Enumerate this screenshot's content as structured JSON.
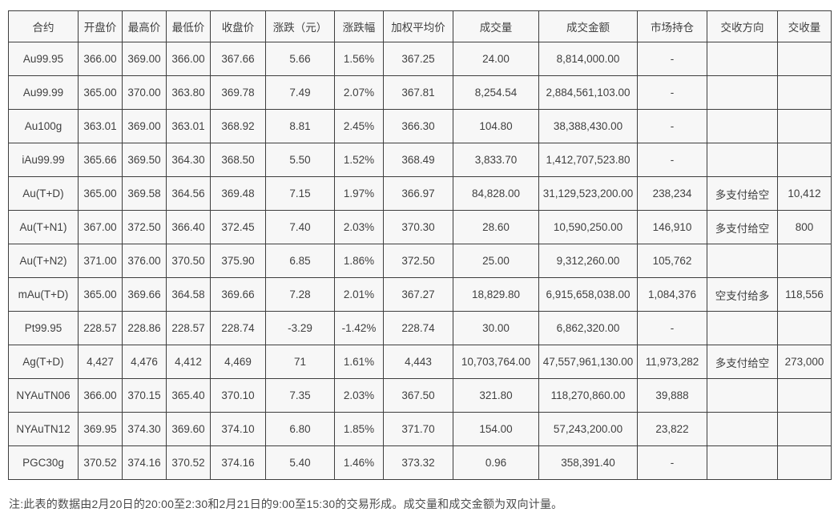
{
  "table": {
    "headers": [
      "合约",
      "开盘价",
      "最高价",
      "最低价",
      "收盘价",
      "涨跌（元）",
      "涨跌幅",
      "加权平均价",
      "成交量",
      "成交金额",
      "市场持仓",
      "交收方向",
      "交收量"
    ],
    "rows": [
      [
        "Au99.95",
        "366.00",
        "369.00",
        "366.00",
        "367.66",
        "5.66",
        "1.56%",
        "367.25",
        "24.00",
        "8,814,000.00",
        "-",
        "",
        ""
      ],
      [
        "Au99.99",
        "365.00",
        "370.00",
        "363.80",
        "369.78",
        "7.49",
        "2.07%",
        "367.81",
        "8,254.54",
        "2,884,561,103.00",
        "-",
        "",
        ""
      ],
      [
        "Au100g",
        "363.01",
        "369.00",
        "363.01",
        "368.92",
        "8.81",
        "2.45%",
        "366.30",
        "104.80",
        "38,388,430.00",
        "-",
        "",
        ""
      ],
      [
        "iAu99.99",
        "365.66",
        "369.50",
        "364.30",
        "368.50",
        "5.50",
        "1.52%",
        "368.49",
        "3,833.70",
        "1,412,707,523.80",
        "-",
        "",
        ""
      ],
      [
        "Au(T+D)",
        "365.00",
        "369.58",
        "364.56",
        "369.48",
        "7.15",
        "1.97%",
        "366.97",
        "84,828.00",
        "31,129,523,200.00",
        "238,234",
        "多支付给空",
        "10,412"
      ],
      [
        "Au(T+N1)",
        "367.00",
        "372.50",
        "366.40",
        "372.45",
        "7.40",
        "2.03%",
        "370.30",
        "28.60",
        "10,590,250.00",
        "146,910",
        "多支付给空",
        "800"
      ],
      [
        "Au(T+N2)",
        "371.00",
        "376.00",
        "370.50",
        "375.90",
        "6.85",
        "1.86%",
        "372.50",
        "25.00",
        "9,312,260.00",
        "105,762",
        "",
        ""
      ],
      [
        "mAu(T+D)",
        "365.00",
        "369.66",
        "364.58",
        "369.66",
        "7.28",
        "2.01%",
        "367.27",
        "18,829.80",
        "6,915,658,038.00",
        "1,084,376",
        "空支付给多",
        "118,556"
      ],
      [
        "Pt99.95",
        "228.57",
        "228.86",
        "228.57",
        "228.74",
        "-3.29",
        "-1.42%",
        "228.74",
        "30.00",
        "6,862,320.00",
        "-",
        "",
        ""
      ],
      [
        "Ag(T+D)",
        "4,427",
        "4,476",
        "4,412",
        "4,469",
        "71",
        "1.61%",
        "4,443",
        "10,703,764.00",
        "47,557,961,130.00",
        "11,973,282",
        "多支付给空",
        "273,000"
      ],
      [
        "NYAuTN06",
        "366.00",
        "370.15",
        "365.40",
        "370.10",
        "7.35",
        "2.03%",
        "367.50",
        "321.80",
        "118,270,860.00",
        "39,888",
        "",
        ""
      ],
      [
        "NYAuTN12",
        "369.95",
        "374.30",
        "369.60",
        "374.10",
        "6.80",
        "1.85%",
        "371.70",
        "154.00",
        "57,243,200.00",
        "23,822",
        "",
        ""
      ],
      [
        "PGC30g",
        "370.52",
        "374.16",
        "370.52",
        "374.16",
        "5.40",
        "1.46%",
        "373.32",
        "0.96",
        "358,391.40",
        "-",
        "",
        ""
      ]
    ]
  },
  "note": "注:此表的数据由2月20日的20:00至2:30和2月21日的9:00至15:30的交易形成。成交量和成交金额为双向计量。",
  "colors": {
    "cell_background": "#f7f7f7",
    "border": "#3e3e3e",
    "text": "#404040",
    "page_background": "#ffffff"
  }
}
